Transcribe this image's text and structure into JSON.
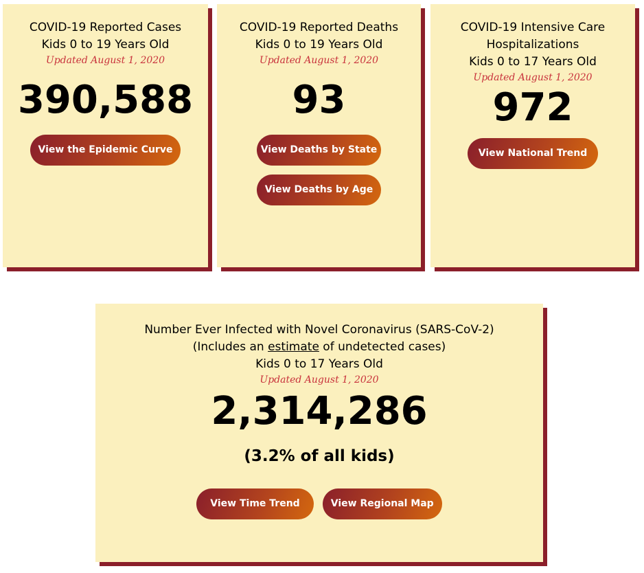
{
  "cards": [
    {
      "title": [
        "COVID-19 Reported Cases",
        "Kids 0 to 19 Years Old"
      ],
      "updated": "Updated August 1, 2020",
      "value": "390,588",
      "buttons": [
        "View the Epidemic Curve"
      ]
    },
    {
      "title": [
        "COVID-19 Reported Deaths",
        "Kids 0 to 19 Years Old"
      ],
      "updated": "Updated August 1, 2020",
      "value": "93",
      "buttons": [
        "View Deaths by State",
        "View Deaths by Age"
      ]
    },
    {
      "title": [
        "COVID-19 Intensive Care",
        "Hospitalizations",
        "Kids 0 to 17 Years Old"
      ],
      "updated": "Updated August 1, 2020",
      "value": "972",
      "buttons": [
        "View National Trend"
      ]
    }
  ],
  "infected": {
    "title": "Number Ever Infected with Novel Coronavirus (SARS-CoV-2)",
    "includes_pre": "(Includes an ",
    "includes_link": "estimate",
    "includes_post": " of undetected cases)",
    "ages": "Kids 0 to 17 Years Old",
    "updated": "Updated August 1, 2020",
    "value": "2,314,286",
    "percent": "(3.2% of all kids)",
    "buttons": [
      "View Time Trend",
      "View Regional Map"
    ]
  },
  "colors": {
    "card_bg": "#fbf0be",
    "shadow": "#8b1f2a",
    "updated_text": "#c8323c",
    "button_start": "#8a1f2b",
    "button_end": "#d4680e"
  }
}
